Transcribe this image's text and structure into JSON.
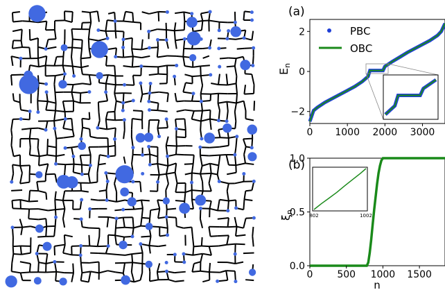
{
  "figure": {
    "network": {
      "description_colors": {
        "edge": "#000000",
        "site": "#4169e1"
      }
    },
    "chart_data": [
      {
        "panel_label": "(a)",
        "type": "line",
        "xlabel": "",
        "ylabel": "E_n",
        "ylabel_main": "E",
        "ylabel_sub": "n",
        "xlim": [
          0,
          3600
        ],
        "ylim": [
          -2.6,
          2.6
        ],
        "xticks": [
          "0",
          "1000",
          "2000",
          "3000"
        ],
        "xtick_values": [
          0,
          1000,
          2000,
          3000
        ],
        "yticks": [
          "−2",
          "0",
          "2"
        ],
        "ytick_values": [
          -2,
          0,
          2
        ],
        "legend_location": "upper-left",
        "series": [
          {
            "name": "PBC",
            "style": "dots",
            "color": "#1f3fd6",
            "x": [
              0,
              100,
              200,
              400,
              600,
              800,
              1000,
              1200,
              1400,
              1550,
              1600,
              1700,
              1800,
              1900,
              1950,
              2000,
              2200,
              2400,
              2600,
              2800,
              3000,
              3200,
              3400,
              3500,
              3600
            ],
            "y": [
              -2.5,
              -1.95,
              -1.8,
              -1.55,
              -1.35,
              -1.15,
              -0.95,
              -0.75,
              -0.5,
              -0.25,
              0.05,
              0.05,
              0.05,
              0.05,
              0.05,
              0.25,
              0.5,
              0.72,
              0.95,
              1.15,
              1.35,
              1.55,
              1.8,
              2.0,
              2.4
            ]
          },
          {
            "name": "OBC",
            "style": "line",
            "color": "#1a8a1a",
            "x": [
              0,
              100,
              200,
              400,
              600,
              800,
              1000,
              1200,
              1400,
              1550,
              1600,
              1700,
              1800,
              1900,
              1950,
              2000,
              2200,
              2400,
              2600,
              2800,
              3000,
              3200,
              3400,
              3500,
              3600
            ],
            "y": [
              -2.5,
              -1.95,
              -1.8,
              -1.55,
              -1.35,
              -1.15,
              -0.95,
              -0.75,
              -0.5,
              -0.25,
              0.05,
              0.05,
              0.05,
              0.05,
              0.05,
              0.25,
              0.5,
              0.72,
              0.95,
              1.15,
              1.35,
              1.55,
              1.8,
              2.0,
              2.4
            ]
          }
        ],
        "inset": {
          "shows": "zoom of flat region near E=0"
        }
      },
      {
        "panel_label": "(b)",
        "type": "line",
        "xlabel": "n",
        "ylabel": "ξ_n",
        "ylabel_main": "ξ",
        "ylabel_sub": "n",
        "xlim": [
          0,
          1850
        ],
        "ylim": [
          0.0,
          1.0
        ],
        "xticks": [
          "0",
          "500",
          "1000",
          "1500"
        ],
        "xtick_values": [
          0,
          500,
          1000,
          1500
        ],
        "yticks": [
          "0.0",
          "0.5",
          "1.0"
        ],
        "ytick_values": [
          0.0,
          0.5,
          1.0
        ],
        "series": [
          {
            "name": "",
            "color": "#1a8a1a",
            "x": [
              0,
              780,
              800,
              820,
              840,
              860,
              880,
              900,
              920,
              940,
              960,
              980,
              1000,
              1850
            ],
            "y": [
              0.0,
              0.0,
              0.03,
              0.12,
              0.24,
              0.38,
              0.52,
              0.64,
              0.76,
              0.86,
              0.93,
              0.98,
              1.0,
              1.0
            ]
          }
        ],
        "inset": {
          "xticks": [
            "802",
            "1002"
          ],
          "xtick_values": [
            802,
            1002
          ],
          "x": [
            802,
            830,
            860,
            890,
            920,
            950,
            980,
            1002
          ],
          "y": [
            0.0,
            0.14,
            0.28,
            0.42,
            0.58,
            0.73,
            0.88,
            1.0
          ]
        }
      }
    ]
  }
}
